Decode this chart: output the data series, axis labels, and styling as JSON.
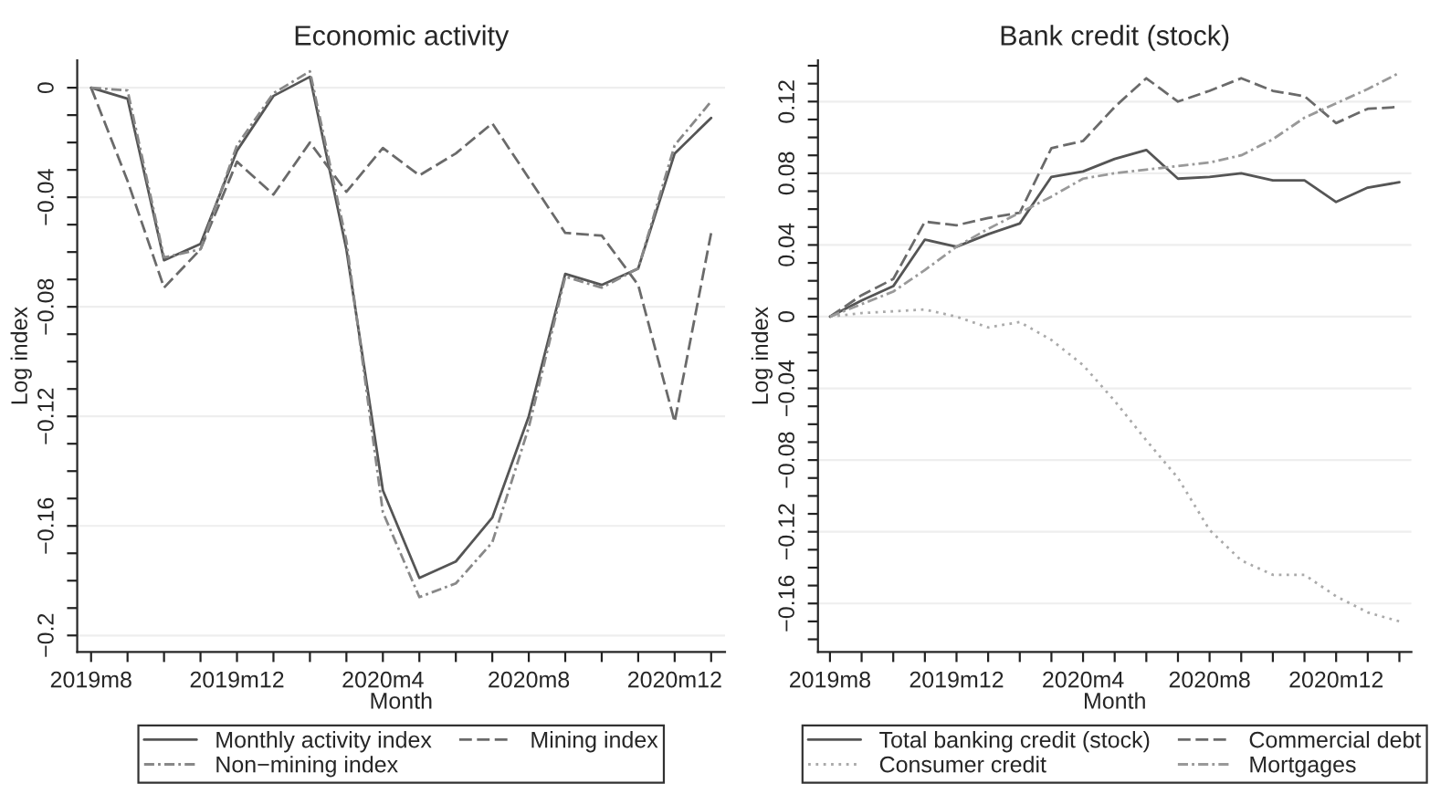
{
  "chart_data": [
    {
      "type": "line",
      "title": "Economic activity",
      "xlabel": "Month",
      "ylabel": "Log index",
      "categories": [
        "2019m8",
        null,
        null,
        null,
        "2019m12",
        null,
        null,
        null,
        "2020m4",
        null,
        null,
        null,
        "2020m8",
        null,
        null,
        null,
        "2020m12",
        null
      ],
      "series": [
        {
          "name": "Monthly activity index",
          "color": "#555555",
          "line_style": "solid",
          "values": [
            0,
            -0.004,
            -0.063,
            -0.057,
            -0.023,
            -0.003,
            0.004,
            -0.059,
            -0.147,
            -0.179,
            -0.173,
            -0.157,
            -0.12,
            -0.068,
            -0.072,
            -0.066,
            -0.024,
            -0.011
          ]
        },
        {
          "name": "Mining index",
          "color": "#6a6a6a",
          "line_style": "dashed",
          "values": [
            0,
            -0.034,
            -0.073,
            -0.059,
            -0.027,
            -0.039,
            -0.02,
            -0.038,
            -0.022,
            -0.032,
            -0.024,
            -0.013,
            -0.033,
            -0.053,
            -0.054,
            -0.072,
            -0.122,
            -0.053
          ]
        },
        {
          "name": "Non−mining index",
          "color": "#888888",
          "line_style": "dashdot",
          "values": [
            0,
            -0.001,
            -0.062,
            -0.059,
            -0.021,
            -0.002,
            0.006,
            -0.056,
            -0.155,
            -0.186,
            -0.181,
            -0.166,
            -0.124,
            -0.069,
            -0.073,
            -0.066,
            -0.021,
            -0.005
          ]
        }
      ],
      "ylim": [
        -0.206,
        0.01
      ],
      "yticks": [
        {
          "value": 0,
          "label": "0"
        },
        {
          "value": -0.01,
          "label": null
        },
        {
          "value": -0.02,
          "label": null
        },
        {
          "value": -0.03,
          "label": null
        },
        {
          "value": -0.04,
          "label": "−0.04"
        },
        {
          "value": -0.05,
          "label": null
        },
        {
          "value": -0.06,
          "label": null
        },
        {
          "value": -0.07,
          "label": null
        },
        {
          "value": -0.08,
          "label": "−0.08"
        },
        {
          "value": -0.09,
          "label": null
        },
        {
          "value": -0.1,
          "label": null
        },
        {
          "value": -0.11,
          "label": null
        },
        {
          "value": -0.12,
          "label": "−0.12"
        },
        {
          "value": -0.13,
          "label": null
        },
        {
          "value": -0.14,
          "label": null
        },
        {
          "value": -0.15,
          "label": null
        },
        {
          "value": -0.16,
          "label": "−0.16"
        },
        {
          "value": -0.17,
          "label": null
        },
        {
          "value": -0.18,
          "label": null
        },
        {
          "value": -0.19,
          "label": null
        },
        {
          "value": -0.2,
          "label": "−0.2"
        }
      ],
      "grid": "y",
      "legend": "bottom"
    },
    {
      "type": "line",
      "title": "Bank credit (stock)",
      "xlabel": "Month",
      "ylabel": "Log index",
      "categories": [
        "2019m8",
        null,
        null,
        null,
        "2019m12",
        null,
        null,
        null,
        "2020m4",
        null,
        null,
        null,
        "2020m8",
        null,
        null,
        null,
        "2020m12",
        null,
        null
      ],
      "series": [
        {
          "name": "Total banking credit (stock)",
          "color": "#555555",
          "line_style": "solid",
          "values": [
            0,
            0.009,
            0.017,
            0.043,
            0.039,
            0.046,
            0.052,
            0.078,
            0.081,
            0.088,
            0.093,
            0.077,
            0.078,
            0.08,
            0.076,
            0.076,
            0.064,
            0.072,
            0.075
          ]
        },
        {
          "name": "Commercial debt",
          "color": "#6a6a6a",
          "line_style": "dashed",
          "values": [
            0,
            0.012,
            0.021,
            0.053,
            0.051,
            0.055,
            0.058,
            0.094,
            0.098,
            0.117,
            0.133,
            0.12,
            0.126,
            0.133,
            0.126,
            0.123,
            0.108,
            0.116,
            0.117
          ]
        },
        {
          "name": "Consumer credit",
          "color": "#aaaaaa",
          "line_style": "dotted",
          "values": [
            0,
            0.002,
            0.003,
            0.004,
            0,
            -0.006,
            -0.003,
            -0.013,
            -0.027,
            -0.047,
            -0.069,
            -0.09,
            -0.119,
            -0.136,
            -0.144,
            -0.144,
            -0.156,
            -0.165,
            -0.17
          ]
        },
        {
          "name": "Mortgages",
          "color": "#999999",
          "line_style": "dashdot",
          "values": [
            0,
            0.007,
            0.014,
            0.026,
            0.039,
            0.049,
            0.058,
            0.067,
            0.077,
            0.08,
            0.082,
            0.084,
            0.086,
            0.09,
            0.099,
            0.111,
            0.119,
            0.127,
            0.136
          ]
        }
      ],
      "ylim": [
        -0.187,
        0.143
      ],
      "yticks": [
        {
          "value": 0.14,
          "label": null
        },
        {
          "value": 0.13,
          "label": null
        },
        {
          "value": 0.12,
          "label": "0.12"
        },
        {
          "value": 0.11,
          "label": null
        },
        {
          "value": 0.1,
          "label": null
        },
        {
          "value": 0.09,
          "label": null
        },
        {
          "value": 0.08,
          "label": "0.08"
        },
        {
          "value": 0.07,
          "label": null
        },
        {
          "value": 0.06,
          "label": null
        },
        {
          "value": 0.05,
          "label": null
        },
        {
          "value": 0.04,
          "label": "0.04"
        },
        {
          "value": 0.03,
          "label": null
        },
        {
          "value": 0.02,
          "label": null
        },
        {
          "value": 0.01,
          "label": null
        },
        {
          "value": 0,
          "label": "0"
        },
        {
          "value": -0.01,
          "label": null
        },
        {
          "value": -0.02,
          "label": null
        },
        {
          "value": -0.03,
          "label": null
        },
        {
          "value": -0.04,
          "label": "−0.04"
        },
        {
          "value": -0.05,
          "label": null
        },
        {
          "value": -0.06,
          "label": null
        },
        {
          "value": -0.07,
          "label": null
        },
        {
          "value": -0.08,
          "label": "−0.08"
        },
        {
          "value": -0.09,
          "label": null
        },
        {
          "value": -0.1,
          "label": null
        },
        {
          "value": -0.11,
          "label": null
        },
        {
          "value": -0.12,
          "label": "−0.12"
        },
        {
          "value": -0.13,
          "label": null
        },
        {
          "value": -0.14,
          "label": null
        },
        {
          "value": -0.15,
          "label": null
        },
        {
          "value": -0.16,
          "label": "−0.16"
        },
        {
          "value": -0.17,
          "label": null
        },
        {
          "value": -0.18,
          "label": null
        }
      ],
      "grid": "y",
      "legend": "bottom"
    }
  ]
}
